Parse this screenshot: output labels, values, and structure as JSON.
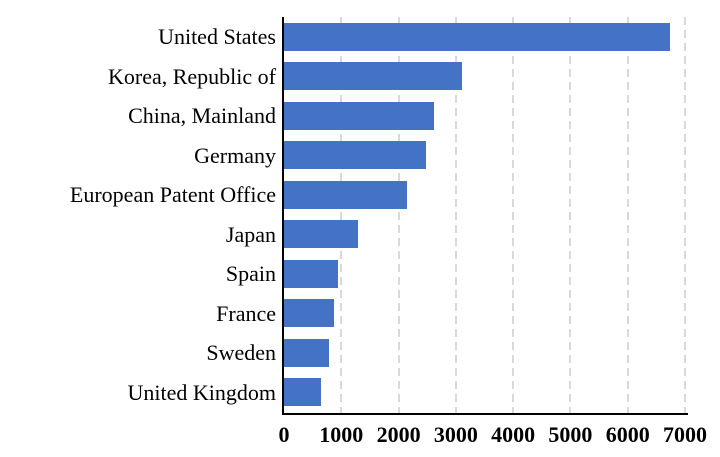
{
  "chart_data": {
    "type": "bar",
    "orientation": "horizontal",
    "title": "",
    "xlabel": "",
    "ylabel": "",
    "categories": [
      "United States",
      "Korea, Republic of",
      "China, Mainland",
      "Germany",
      "European Patent Office",
      "Japan",
      "Spain",
      "France",
      "Sweden",
      "United Kingdom"
    ],
    "values": [
      6730,
      3100,
      2610,
      2480,
      2140,
      1300,
      950,
      870,
      780,
      650
    ],
    "xlim": [
      0,
      7000
    ],
    "x_ticks": [
      0,
      1000,
      2000,
      3000,
      4000,
      5000,
      6000,
      7000
    ],
    "grid": "vertical-dashed",
    "legend": "none",
    "colors": {
      "bar": "#4472C4",
      "gridline": "#D9D9D9",
      "axis": "#000000",
      "text": "#000000"
    }
  }
}
